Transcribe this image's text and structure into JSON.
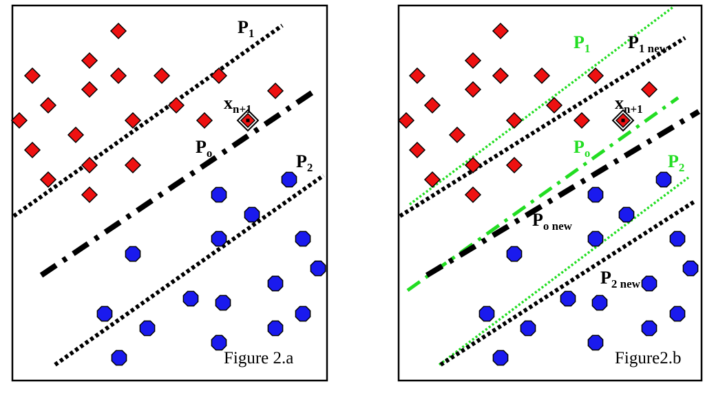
{
  "colors": {
    "class1": "#ee1111",
    "class2": "#1a1aee",
    "line_old": "#000000",
    "line_new_green": "#22dd22",
    "panel_border": "#000000"
  },
  "panel_a": {
    "caption": "Figure 2.a",
    "labels": {
      "p1": {
        "main": "P",
        "sub": "1"
      },
      "po": {
        "main": "P",
        "sub": "o"
      },
      "p2": {
        "main": "P",
        "sub": "2"
      },
      "xn": {
        "main": "x",
        "sub": "n+1"
      }
    }
  },
  "panel_b": {
    "caption": "Figure2.b",
    "labels": {
      "p1": {
        "main": "P",
        "sub": "1"
      },
      "p1new": {
        "main": "P",
        "sub": "1 new"
      },
      "xn": {
        "main": "x",
        "sub": "n+1"
      },
      "po": {
        "main": "P",
        "sub": "o"
      },
      "p2": {
        "main": "P",
        "sub": "2"
      },
      "ponew": {
        "main": "P",
        "sub": "o new"
      },
      "p2new": {
        "main": "P",
        "sub": "2 new"
      }
    }
  }
}
